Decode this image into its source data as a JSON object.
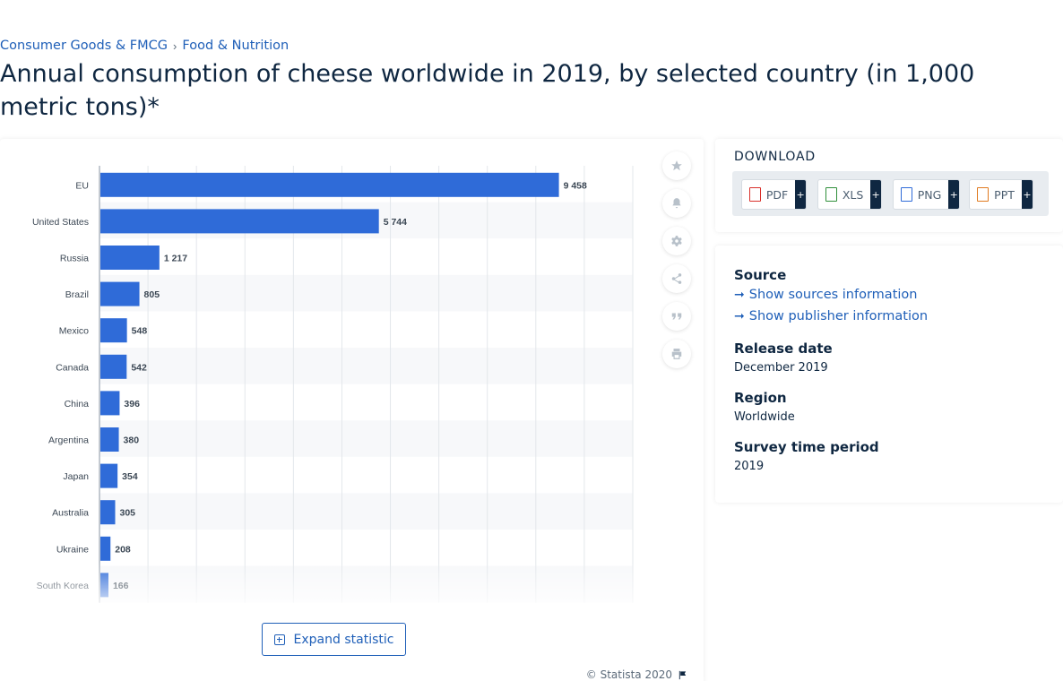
{
  "breadcrumb": {
    "items": [
      "Consumer Goods & FMCG",
      "Food & Nutrition"
    ],
    "separator": "›"
  },
  "page_title": "Annual consumption of cheese worldwide in 2019, by selected country (in 1,000 metric tons)*",
  "chart_data": {
    "type": "bar",
    "orientation": "horizontal",
    "categories": [
      "EU",
      "United States",
      "Russia",
      "Brazil",
      "Mexico",
      "Canada",
      "China",
      "Argentina",
      "Japan",
      "Australia",
      "Ukraine",
      "South Korea"
    ],
    "values": [
      9458,
      5744,
      1217,
      805,
      548,
      542,
      396,
      380,
      354,
      305,
      208,
      166
    ],
    "value_labels": [
      "9 458",
      "5 744",
      "1 217",
      "805",
      "548",
      "542",
      "396",
      "380",
      "354",
      "305",
      "208",
      "166"
    ],
    "xlim": [
      0,
      11000
    ],
    "grid": true,
    "bar_color": "#2f6bd8",
    "title": "",
    "xlabel": "",
    "ylabel": ""
  },
  "tools": {
    "icons": [
      "star-icon",
      "bell-icon",
      "gear-icon",
      "share-icon",
      "quote-icon",
      "print-icon"
    ]
  },
  "expand_button": {
    "label": "Expand statistic"
  },
  "copyright": "© Statista 2020",
  "download": {
    "title": "DOWNLOAD",
    "formats": [
      {
        "label": "PDF",
        "color": "#d9302b"
      },
      {
        "label": "XLS",
        "color": "#2f8f3a"
      },
      {
        "label": "PNG",
        "color": "#2f6bd8"
      },
      {
        "label": "PPT",
        "color": "#e07a1f"
      }
    ],
    "plus": "+"
  },
  "info": {
    "source_heading": "Source",
    "show_sources": "Show sources information",
    "show_publisher": "Show publisher information",
    "release_heading": "Release date",
    "release_value": "December 2019",
    "region_heading": "Region",
    "region_value": "Worldwide",
    "survey_heading": "Survey time period",
    "survey_value": "2019"
  }
}
